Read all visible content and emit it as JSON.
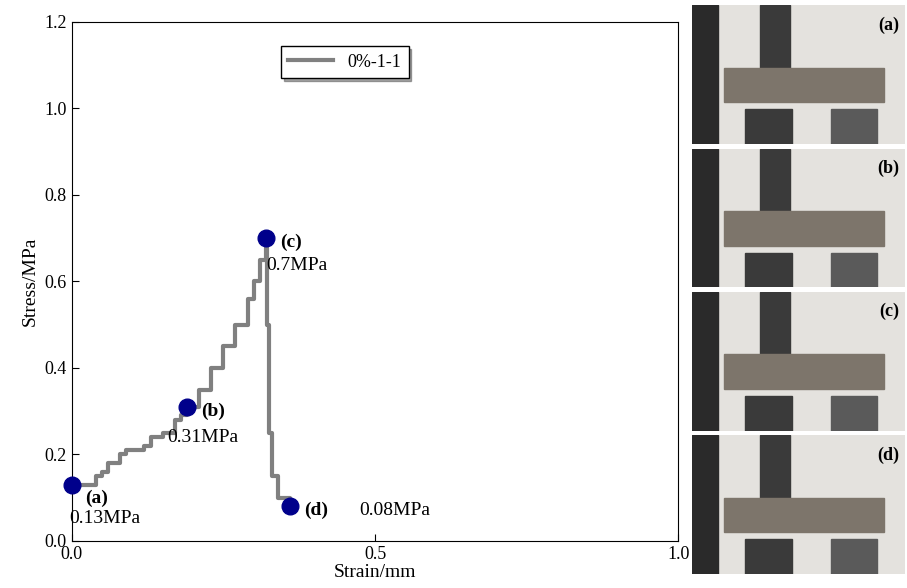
{
  "chart_data": {
    "type": "line",
    "xlabel": "Strain/mm",
    "ylabel": "Stress/MPa",
    "xlim": [
      0,
      1.0
    ],
    "ylim": [
      0,
      1.2
    ],
    "xticks": [
      {
        "value": 0,
        "label": "0.0"
      },
      {
        "value": 0.5,
        "label": "0.5"
      },
      {
        "value": 1.0,
        "label": "1.0"
      }
    ],
    "yticks": [
      {
        "value": 0,
        "label": "0.0"
      },
      {
        "value": 0.2,
        "label": "0.2"
      },
      {
        "value": 0.4,
        "label": "0.4"
      },
      {
        "value": 0.6,
        "label": "0.6"
      },
      {
        "value": 0.8,
        "label": "0.8"
      },
      {
        "value": 1.0,
        "label": "1.0"
      },
      {
        "value": 1.2,
        "label": "1.2"
      }
    ],
    "legend": "upper center",
    "series": [
      {
        "name": "0%-1-1",
        "color": "#808080",
        "line_style": "solid",
        "x": [
          0,
          0.03,
          0.04,
          0.05,
          0.06,
          0.08,
          0.09,
          0.12,
          0.13,
          0.15,
          0.17,
          0.18,
          0.19,
          0.21,
          0.23,
          0.25,
          0.27,
          0.29,
          0.3,
          0.31,
          0.32,
          0.322,
          0.325,
          0.33,
          0.34,
          0.36
        ],
        "values": [
          0.13,
          0.13,
          0.15,
          0.16,
          0.18,
          0.2,
          0.21,
          0.22,
          0.24,
          0.25,
          0.28,
          0.29,
          0.31,
          0.35,
          0.4,
          0.45,
          0.5,
          0.56,
          0.6,
          0.65,
          0.7,
          0.5,
          0.25,
          0.15,
          0.1,
          0.08
        ]
      }
    ],
    "points": [
      {
        "x": 0,
        "y": 0.13,
        "label": "(a)",
        "annotation": "0.13MPa",
        "color": "#00008b"
      },
      {
        "x": 0.19,
        "y": 0.31,
        "label": "(b)",
        "annotation": "0.31MPa",
        "color": "#00008b"
      },
      {
        "x": 0.32,
        "y": 0.7,
        "label": "(c)",
        "annotation": "0.7MPa",
        "color": "#00008b"
      },
      {
        "x": 0.36,
        "y": 0.08,
        "label": "(d)",
        "annotation": "0.08MPa",
        "color": "#00008b"
      }
    ]
  },
  "photos": {
    "labels": [
      "(a)",
      "(b)",
      "(c)",
      "(d)"
    ]
  }
}
